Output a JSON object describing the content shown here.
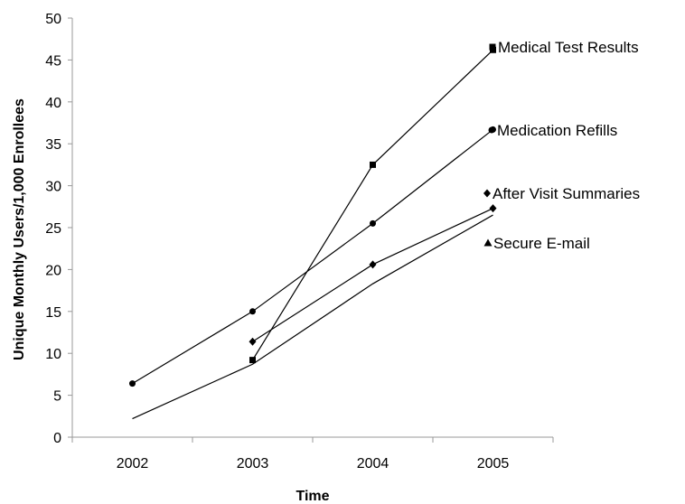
{
  "chart_data": {
    "type": "line",
    "title": "",
    "xlabel": "Time",
    "ylabel": "Unique Monthly Users/1,000 Enrollees",
    "categories": [
      "2002",
      "2003",
      "2004",
      "2005"
    ],
    "ylim": [
      0,
      50
    ],
    "yticks": [
      0,
      5,
      10,
      15,
      20,
      25,
      30,
      35,
      40,
      45,
      50
    ],
    "grid": false,
    "legend": "inline labels at series ends",
    "series": [
      {
        "name": "Medical Test Results",
        "marker": "square",
        "values": [
          null,
          9.2,
          32.5,
          46.2
        ]
      },
      {
        "name": "Medication Refills",
        "marker": "circle",
        "values": [
          6.4,
          15.0,
          25.5,
          36.7
        ]
      },
      {
        "name": "After Visit Summaries",
        "marker": "diamond",
        "values": [
          null,
          11.4,
          20.6,
          27.3
        ]
      },
      {
        "name": "Secure E-mail",
        "marker": "triangle",
        "values": [
          2.2,
          8.7,
          18.3,
          26.5
        ]
      }
    ]
  }
}
